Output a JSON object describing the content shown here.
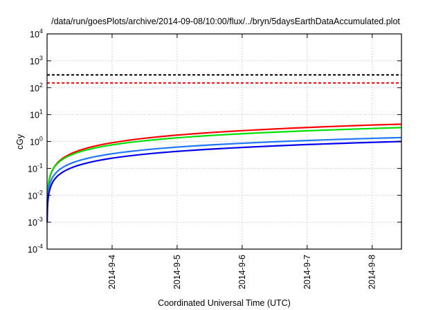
{
  "chart_data": {
    "type": "line",
    "title": "/data/run/goesPlots/archive/2014-09-08/10:00/flux/../bryn/5daysEarthDataAccumulated.plot",
    "xlabel": "Coordinated Universal Time (UTC)",
    "ylabel": "cGy",
    "yscale": "log",
    "ylim": [
      0.0001,
      10000
    ],
    "xlim": [
      0,
      5.45
    ],
    "grid": true,
    "y_ticks": [
      {
        "value": 0.0001,
        "base": "10",
        "exp": "-4"
      },
      {
        "value": 0.001,
        "base": "10",
        "exp": "-3"
      },
      {
        "value": 0.01,
        "base": "10",
        "exp": "-2"
      },
      {
        "value": 0.1,
        "base": "10",
        "exp": "-1"
      },
      {
        "value": 1,
        "base": "10",
        "exp": "0"
      },
      {
        "value": 10,
        "base": "10",
        "exp": "1"
      },
      {
        "value": 100,
        "base": "10",
        "exp": "2"
      },
      {
        "value": 1000,
        "base": "10",
        "exp": "3"
      },
      {
        "value": 10000,
        "base": "10",
        "exp": "4"
      }
    ],
    "x_ticks": [
      {
        "value": 1,
        "label": "2014-9-4"
      },
      {
        "value": 2,
        "label": "2014-9-5"
      },
      {
        "value": 3,
        "label": "2014-9-6"
      },
      {
        "value": 4,
        "label": "2014-9-7"
      },
      {
        "value": 5,
        "label": "2014-9-8"
      }
    ],
    "thresholds": [
      {
        "value": 300,
        "color": "#000000"
      },
      {
        "value": 150,
        "color": "#ff0000"
      }
    ],
    "x": [
      0.002,
      0.01,
      0.05,
      0.1,
      0.25,
      0.5,
      1,
      2,
      3,
      4,
      5,
      5.45
    ],
    "series": [
      {
        "name": "red",
        "color": "#ff0000",
        "values": [
          0.003,
          0.012,
          0.054,
          0.103,
          0.245,
          0.47,
          0.9,
          1.73,
          2.53,
          3.32,
          4.1,
          4.4
        ]
      },
      {
        "name": "green",
        "color": "#00e000",
        "values": [
          0.0033,
          0.0135,
          0.056,
          0.101,
          0.225,
          0.41,
          0.75,
          1.37,
          1.95,
          2.5,
          3.05,
          3.3
        ]
      },
      {
        "name": "light-blue",
        "color": "#1e78ff",
        "values": [
          0.0018,
          0.008,
          0.03,
          0.053,
          0.112,
          0.198,
          0.35,
          0.62,
          0.86,
          1.09,
          1.31,
          1.4
        ]
      },
      {
        "name": "blue",
        "color": "#0000ee",
        "values": [
          0.001,
          0.005,
          0.019,
          0.035,
          0.075,
          0.134,
          0.24,
          0.43,
          0.6,
          0.77,
          0.93,
          1.0
        ]
      }
    ]
  }
}
